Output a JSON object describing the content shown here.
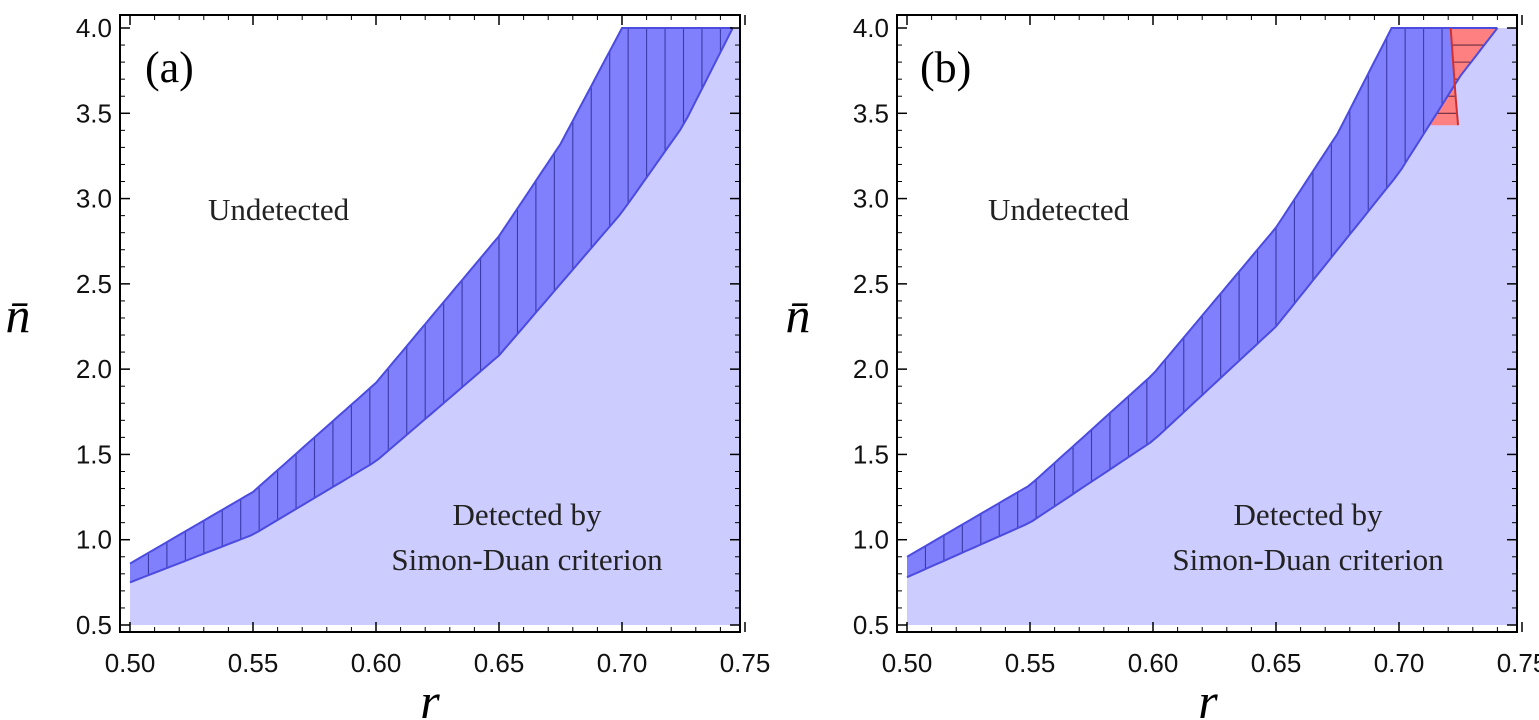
{
  "chart_data": [
    {
      "type": "area",
      "panel_label": "(a)",
      "xlabel": "r",
      "ylabel": "n̄",
      "xlim": [
        0.5,
        0.75
      ],
      "ylim": [
        0.5,
        4.0
      ],
      "xticks": [
        "0.50",
        "0.55",
        "0.60",
        "0.65",
        "0.70",
        "0.75"
      ],
      "yticks": [
        "0.5",
        "1.0",
        "1.5",
        "2.0",
        "2.5",
        "3.0",
        "3.5",
        "4.0"
      ],
      "annotations": {
        "undetected": "Undetected",
        "detected_line1": "Detected by",
        "detected_line2": "Simon-Duan criterion"
      },
      "colors": {
        "light_region": "#ccccff",
        "hatched_region": "#8080fc",
        "boundary": "#4b4be0",
        "hatch": "#3a3aa8"
      },
      "series": [
        {
          "name": "simon-duan-boundary",
          "x": [
            0.5,
            0.55,
            0.6,
            0.65,
            0.7,
            0.725,
            0.745
          ],
          "y": [
            0.75,
            1.03,
            1.46,
            2.08,
            2.92,
            3.43,
            4.0
          ]
        },
        {
          "name": "upper-boundary",
          "x": [
            0.5,
            0.55,
            0.6,
            0.65,
            0.675,
            0.7
          ],
          "y": [
            0.86,
            1.28,
            1.92,
            2.78,
            3.32,
            4.0
          ]
        }
      ]
    },
    {
      "type": "area",
      "panel_label": "(b)",
      "xlabel": "r",
      "ylabel": "n̄",
      "xlim": [
        0.5,
        0.75
      ],
      "ylim": [
        0.5,
        4.0
      ],
      "xticks": [
        "0.50",
        "0.55",
        "0.60",
        "0.65",
        "0.70",
        "0.75"
      ],
      "yticks": [
        "0.5",
        "1.0",
        "1.5",
        "2.0",
        "2.5",
        "3.0",
        "3.5",
        "4.0"
      ],
      "annotations": {
        "undetected": "Undetected",
        "detected_line1": "Detected by",
        "detected_line2": "Simon-Duan criterion"
      },
      "colors": {
        "light_region": "#ccccff",
        "hatched_region": "#8080fc",
        "boundary": "#4b4be0",
        "hatch": "#3a3aa8",
        "red_region": "#ff8080",
        "red_boundary": "#d03030"
      },
      "series": [
        {
          "name": "simon-duan-boundary",
          "x": [
            0.5,
            0.55,
            0.6,
            0.65,
            0.7,
            0.725,
            0.74
          ],
          "y": [
            0.78,
            1.1,
            1.58,
            2.25,
            3.15,
            3.72,
            4.0
          ]
        },
        {
          "name": "upper-boundary",
          "x": [
            0.5,
            0.55,
            0.6,
            0.65,
            0.675,
            0.697
          ],
          "y": [
            0.9,
            1.32,
            1.97,
            2.83,
            3.38,
            4.0
          ]
        },
        {
          "name": "red-left-boundary",
          "x": [
            0.721,
            0.722,
            0.723,
            0.724
          ],
          "y": [
            4.0,
            3.8,
            3.6,
            3.43
          ]
        }
      ]
    }
  ]
}
